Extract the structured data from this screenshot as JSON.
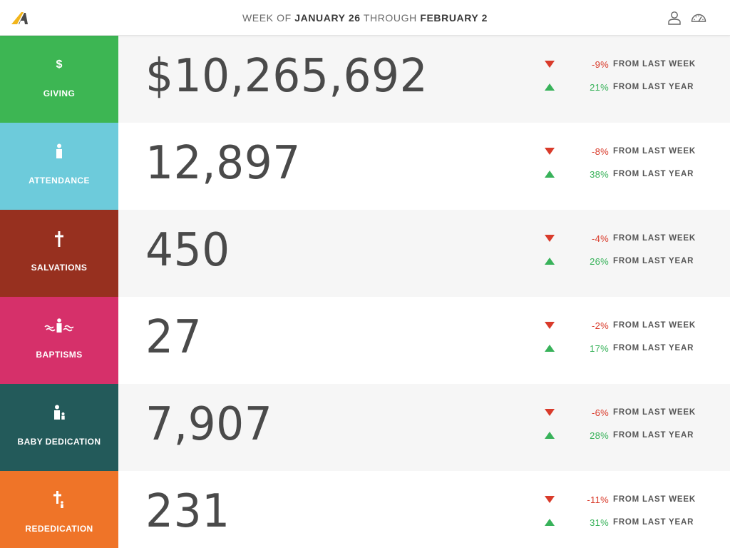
{
  "header": {
    "week_prefix": "WEEK OF ",
    "start_date": "JANUARY 26",
    "through": " THROUGH ",
    "end_date": "FEBRUARY 2"
  },
  "metrics": [
    {
      "label": "GIVING",
      "icon": "dollar-icon",
      "color": "#3db653",
      "value": "$10,265,692",
      "week_pct": "-9%",
      "week_label": "FROM LAST WEEK",
      "year_pct": "21%",
      "year_label": "FROM LAST YEAR"
    },
    {
      "label": "ATTENDANCE",
      "icon": "person-icon",
      "color": "#6dcbdb",
      "value": "12,897",
      "week_pct": "-8%",
      "week_label": "FROM LAST WEEK",
      "year_pct": "38%",
      "year_label": "FROM LAST YEAR"
    },
    {
      "label": "SALVATIONS",
      "icon": "cross-icon",
      "color": "#97301f",
      "value": "450",
      "week_pct": "-4%",
      "week_label": "FROM LAST WEEK",
      "year_pct": "26%",
      "year_label": "FROM LAST YEAR"
    },
    {
      "label": "BAPTISMS",
      "icon": "baptism-icon",
      "color": "#d6306a",
      "value": "27",
      "week_pct": "-2%",
      "week_label": "FROM LAST WEEK",
      "year_pct": "17%",
      "year_label": "FROM LAST YEAR"
    },
    {
      "label": "BABY DEDICATION",
      "icon": "parent-child-icon",
      "color": "#235a5a",
      "value": "7,907",
      "week_pct": "-6%",
      "week_label": "FROM LAST WEEK",
      "year_pct": "28%",
      "year_label": "FROM LAST YEAR"
    },
    {
      "label": "REDEDICATION",
      "icon": "cross-person-icon",
      "color": "#ef7428",
      "value": "231",
      "week_pct": "-11%",
      "week_label": "FROM LAST WEEK",
      "year_pct": "31%",
      "year_label": "FROM LAST YEAR"
    }
  ],
  "colors": {
    "negative": "#d93b2b",
    "positive": "#38b25a",
    "logo_yellow": "#f2b51b",
    "logo_gray": "#4a4a4a"
  }
}
